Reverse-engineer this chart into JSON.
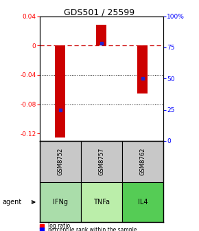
{
  "title": "GDS501 / 25599",
  "samples": [
    "GSM8752",
    "GSM8757",
    "GSM8762"
  ],
  "agents": [
    "IFNg",
    "TNFa",
    "IL4"
  ],
  "log_ratios": [
    -0.125,
    0.028,
    -0.065
  ],
  "percentile_ranks": [
    25,
    78,
    50
  ],
  "ylim_left": [
    -0.13,
    0.04
  ],
  "ylim_right": [
    0,
    100
  ],
  "bar_color": "#cc0000",
  "dot_color": "#2222cc",
  "zero_line_color": "#cc0000",
  "sample_bg": "#c8c8c8",
  "agent_colors": [
    "#aaddaa",
    "#bbeeaa",
    "#55cc55"
  ],
  "left_yticks": [
    0.04,
    0.0,
    -0.04,
    -0.08,
    -0.12
  ],
  "right_yticks": [
    100,
    75,
    50,
    25,
    0
  ],
  "left_tick_labels": [
    "0.04",
    "0",
    "-0.04",
    "-0.08",
    "-0.12"
  ],
  "right_tick_labels": [
    "100%",
    "75",
    "50",
    "25",
    "0"
  ]
}
